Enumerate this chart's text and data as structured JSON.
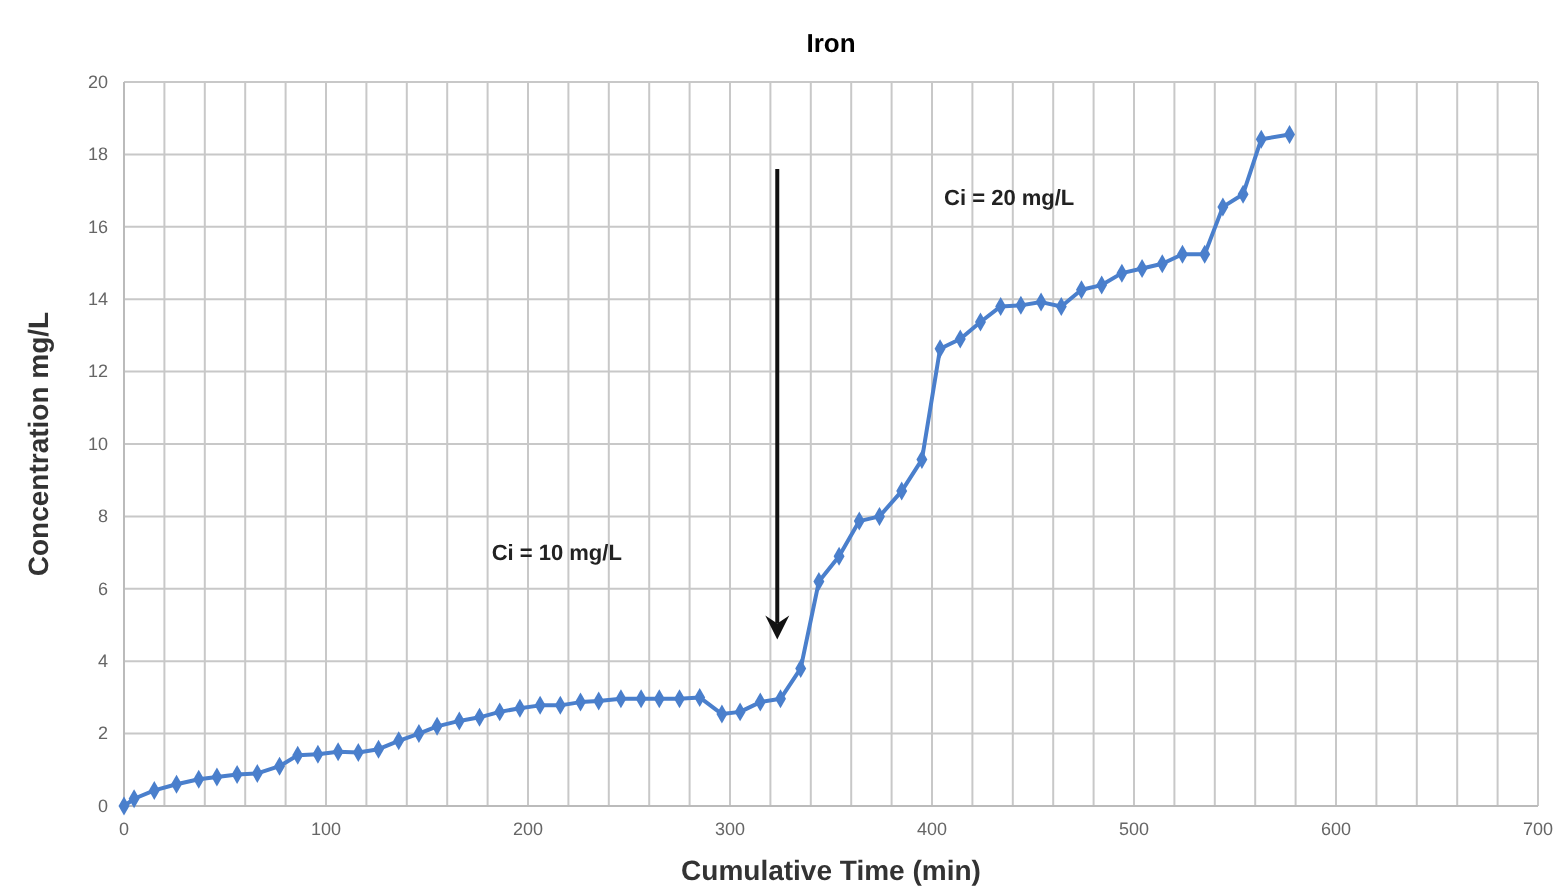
{
  "chart_data": {
    "type": "line",
    "title": "Iron",
    "xlabel": "Cumulative Time (min)",
    "ylabel": "Concentration mg/L",
    "x": [
      0,
      5,
      15,
      26,
      37,
      46,
      56,
      66,
      77,
      86,
      96,
      106,
      116,
      126,
      136,
      146,
      155,
      166,
      176,
      186,
      196,
      206,
      216,
      226,
      235,
      246,
      256,
      265,
      275,
      285,
      296,
      305,
      315,
      325,
      335,
      344,
      354,
      364,
      374,
      385,
      395,
      404,
      414,
      424,
      434,
      444,
      454,
      464,
      474,
      484,
      494,
      504,
      514,
      524,
      535,
      544,
      554,
      563,
      577
    ],
    "series": [
      {
        "color": "#4a7fcc",
        "values": [
          0,
          0.2,
          0.43,
          0.6,
          0.74,
          0.8,
          0.87,
          0.9,
          1.1,
          1.4,
          1.43,
          1.5,
          1.48,
          1.57,
          1.8,
          2.0,
          2.2,
          2.35,
          2.45,
          2.6,
          2.7,
          2.78,
          2.78,
          2.87,
          2.9,
          2.96,
          2.96,
          2.96,
          2.96,
          3.0,
          2.54,
          2.6,
          2.87,
          2.96,
          3.8,
          6.2,
          6.9,
          7.87,
          8.0,
          8.7,
          9.57,
          12.63,
          12.9,
          13.37,
          13.8,
          13.83,
          13.92,
          13.8,
          14.26,
          14.39,
          14.72,
          14.85,
          14.98,
          15.24,
          15.24,
          16.55,
          16.9,
          18.42,
          18.55
        ]
      }
    ],
    "xlim": [
      0,
      700
    ],
    "ylim": [
      0,
      20
    ],
    "xticks": [
      0,
      {
        "value": 20,
        "label": null
      },
      {
        "value": 40,
        "label": null
      },
      {
        "value": 60,
        "label": null
      },
      {
        "value": 80,
        "label": null
      },
      100,
      {
        "value": 120,
        "label": null
      },
      {
        "value": 140,
        "label": null
      },
      {
        "value": 160,
        "label": null
      },
      {
        "value": 180,
        "label": null
      },
      200,
      {
        "value": 220,
        "label": null
      },
      {
        "value": 240,
        "label": null
      },
      {
        "value": 260,
        "label": null
      },
      {
        "value": 280,
        "label": null
      },
      300,
      {
        "value": 320,
        "label": null
      },
      {
        "value": 340,
        "label": null
      },
      {
        "value": 360,
        "label": null
      },
      {
        "value": 380,
        "label": null
      },
      400,
      {
        "value": 420,
        "label": null
      },
      {
        "value": 440,
        "label": null
      },
      {
        "value": 460,
        "label": null
      },
      {
        "value": 480,
        "label": null
      },
      500,
      {
        "value": 520,
        "label": null
      },
      {
        "value": 540,
        "label": null
      },
      {
        "value": 560,
        "label": null
      },
      {
        "value": 580,
        "label": null
      },
      600,
      {
        "value": 620,
        "label": null
      },
      {
        "value": 640,
        "label": null
      },
      {
        "value": 660,
        "label": null
      },
      {
        "value": 680,
        "label": null
      },
      700
    ],
    "yticks": [
      0,
      2,
      4,
      6,
      8,
      10,
      12,
      14,
      16,
      18,
      20
    ],
    "grid": true,
    "marker": "diamond",
    "line_style": "solid",
    "annotations": [
      "Ci = 10 mg/L",
      "Ci = 20 mg/L"
    ]
  }
}
